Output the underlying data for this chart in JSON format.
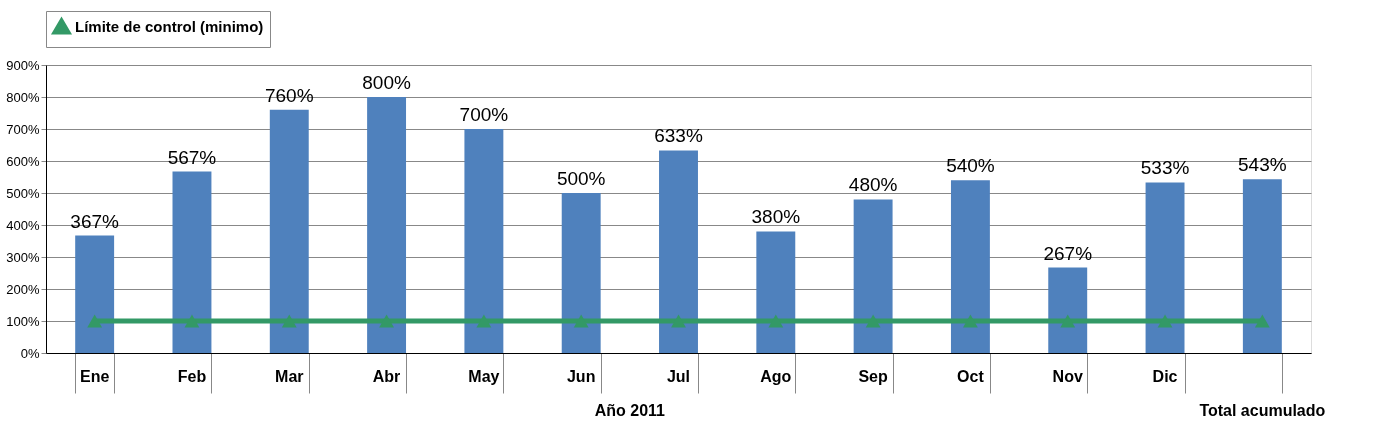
{
  "chart_data": {
    "type": "bar",
    "categories": [
      "Ene",
      "Feb",
      "Mar",
      "Abr",
      "May",
      "Jun",
      "Jul",
      "Ago",
      "Sep",
      "Oct",
      "Nov",
      "Dic",
      null
    ],
    "series": [
      {
        "color": "#4f81bd",
        "values": [
          367,
          567,
          760,
          800,
          700,
          500,
          633,
          380,
          480,
          540,
          267,
          533,
          543
        ],
        "value_labels": [
          "367%",
          "567%",
          "760%",
          "800%",
          "700%",
          "500%",
          "633%",
          "380%",
          "480%",
          "540%",
          "267%",
          "533%",
          "543%"
        ]
      },
      {
        "type": "line",
        "name": "Límite de control (minimo)",
        "color": "#339966",
        "marker": "triangle",
        "values": [
          100,
          100,
          100,
          100,
          100,
          100,
          100,
          100,
          100,
          100,
          100,
          100,
          100
        ]
      }
    ],
    "ylim": [
      0,
      900
    ],
    "yticks": [
      {
        "value": 0,
        "label": "0%"
      },
      {
        "value": 100,
        "label": "100%"
      },
      {
        "value": 200,
        "label": "200%"
      },
      {
        "value": 300,
        "label": "300%"
      },
      {
        "value": 400,
        "label": "400%"
      },
      {
        "value": 500,
        "label": "500%"
      },
      {
        "value": 600,
        "label": "600%"
      },
      {
        "value": 700,
        "label": "700%"
      },
      {
        "value": 800,
        "label": "800%"
      },
      {
        "value": 900,
        "label": "900%"
      }
    ],
    "grid": "y",
    "legend": "top",
    "annotations": [
      "Año 2011",
      "Total acumulado"
    ]
  }
}
